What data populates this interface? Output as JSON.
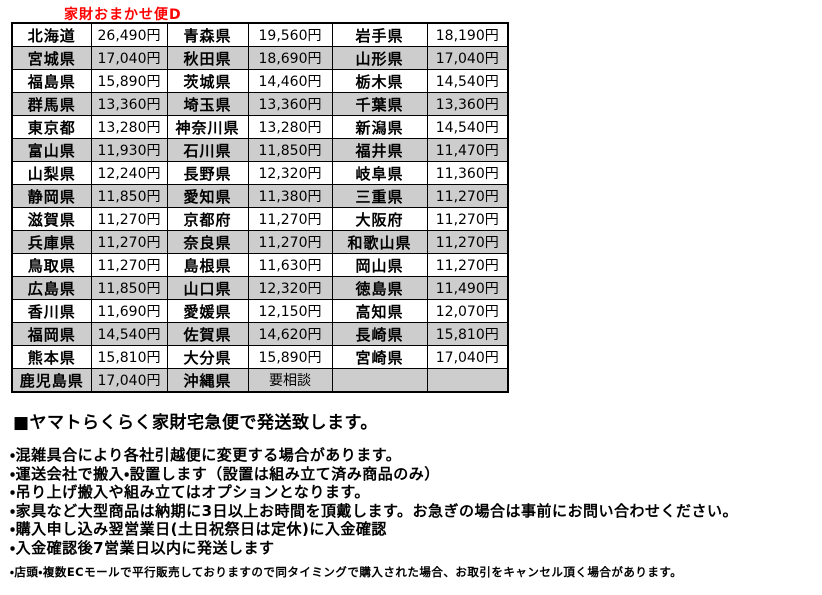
{
  "title": {
    "text": "家財おまかせ便D",
    "color": "#ff0000"
  },
  "shipping_table": {
    "shaded_row_color": "#cdcdcd",
    "columns_per_row": [
      "prefecture",
      "price",
      "prefecture",
      "price",
      "prefecture",
      "price"
    ],
    "rows": [
      [
        "北海道",
        "26,490円",
        "青森県",
        "19,560円",
        "岩手県",
        "18,190円"
      ],
      [
        "宮城県",
        "17,040円",
        "秋田県",
        "18,690円",
        "山形県",
        "17,040円"
      ],
      [
        "福島県",
        "15,890円",
        "茨城県",
        "14,460円",
        "栃木県",
        "14,540円"
      ],
      [
        "群馬県",
        "13,360円",
        "埼玉県",
        "13,360円",
        "千葉県",
        "13,360円"
      ],
      [
        "東京都",
        "13,280円",
        "神奈川県",
        "13,280円",
        "新潟県",
        "14,540円"
      ],
      [
        "富山県",
        "11,930円",
        "石川県",
        "11,850円",
        "福井県",
        "11,470円"
      ],
      [
        "山梨県",
        "12,240円",
        "長野県",
        "12,320円",
        "岐阜県",
        "11,360円"
      ],
      [
        "静岡県",
        "11,850円",
        "愛知県",
        "11,380円",
        "三重県",
        "11,270円"
      ],
      [
        "滋賀県",
        "11,270円",
        "京都府",
        "11,270円",
        "大阪府",
        "11,270円"
      ],
      [
        "兵庫県",
        "11,270円",
        "奈良県",
        "11,270円",
        "和歌山県",
        "11,270円"
      ],
      [
        "鳥取県",
        "11,270円",
        "島根県",
        "11,630円",
        "岡山県",
        "11,270円"
      ],
      [
        "広島県",
        "11,850円",
        "山口県",
        "12,320円",
        "徳島県",
        "11,490円"
      ],
      [
        "香川県",
        "11,690円",
        "愛媛県",
        "12,150円",
        "高知県",
        "12,070円"
      ],
      [
        "福岡県",
        "14,540円",
        "佐賀県",
        "14,620円",
        "長崎県",
        "15,810円"
      ],
      [
        "熊本県",
        "15,810円",
        "大分県",
        "15,890円",
        "宮崎県",
        "17,040円"
      ],
      [
        "鹿児島県",
        "17,040円",
        "沖縄県",
        "要相談",
        "",
        ""
      ]
    ]
  },
  "notes": {
    "heading": "■ヤマトらくらく家財宅急便で発送致します。",
    "bullets": [
      "・混雑具合により各社引越便に変更する場合があります。",
      "・運送会社で搬入・設置します（設置は組み立て済み商品のみ）",
      "・吊り上げ搬入や組み立てはオプションとなります。",
      "・家具など大型商品は納期に3日以上お時間を頂戴します。お急ぎの場合は事前にお問い合わせください。",
      "・購入申し込み翌営業日(土日祝祭日は定休)に入金確認",
      "・入金確認後7営業日以内に発送します"
    ],
    "footnote": "・店頭・複数ECモールで平行販売しておりますので同タイミングで購入された場合、お取引をキャンセル頂く場合があります。"
  }
}
